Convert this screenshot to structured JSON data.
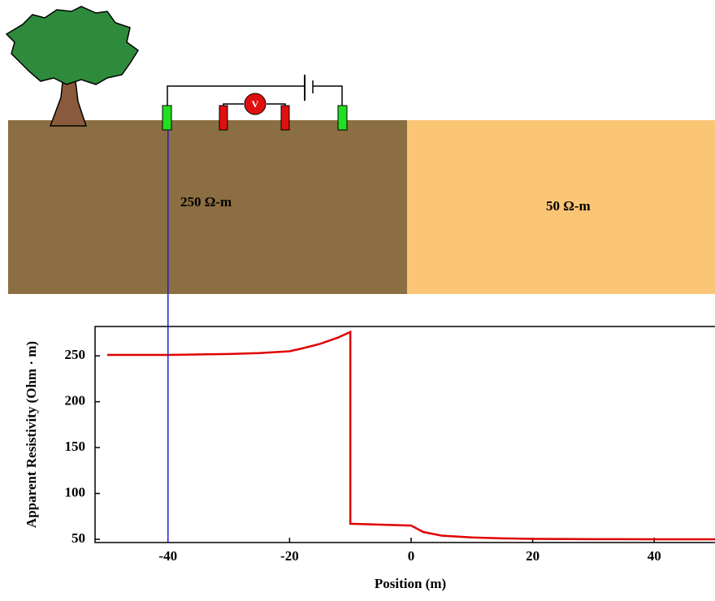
{
  "diagram": {
    "left_layer": "250 Ω-m",
    "right_layer": "50 Ω-m",
    "meter": "V"
  },
  "chart_data": {
    "type": "line",
    "x_label": "Position (m)",
    "y_label": "Apparent Resistivity (Ohm · m)",
    "xlim": [
      -52,
      50
    ],
    "ylim": [
      46.5,
      282
    ],
    "xticks": [
      -40,
      -20,
      0,
      20,
      40
    ],
    "yticks": [
      50,
      100,
      150,
      200,
      250
    ],
    "grid": false,
    "current_position": -40,
    "marker_color": "#2020d0",
    "series": [
      {
        "color": "#e00000",
        "x": [
          -50,
          -40,
          -30,
          -25,
          -20,
          -18,
          -15,
          -12,
          -10,
          -10,
          -5,
          0,
          2,
          5,
          10,
          15,
          20,
          30,
          40,
          50
        ],
        "values": [
          251,
          251,
          252,
          253,
          255,
          258,
          263,
          270,
          276,
          67,
          66,
          65,
          58,
          54,
          52,
          51,
          50.5,
          50.2,
          50,
          50
        ]
      }
    ]
  }
}
